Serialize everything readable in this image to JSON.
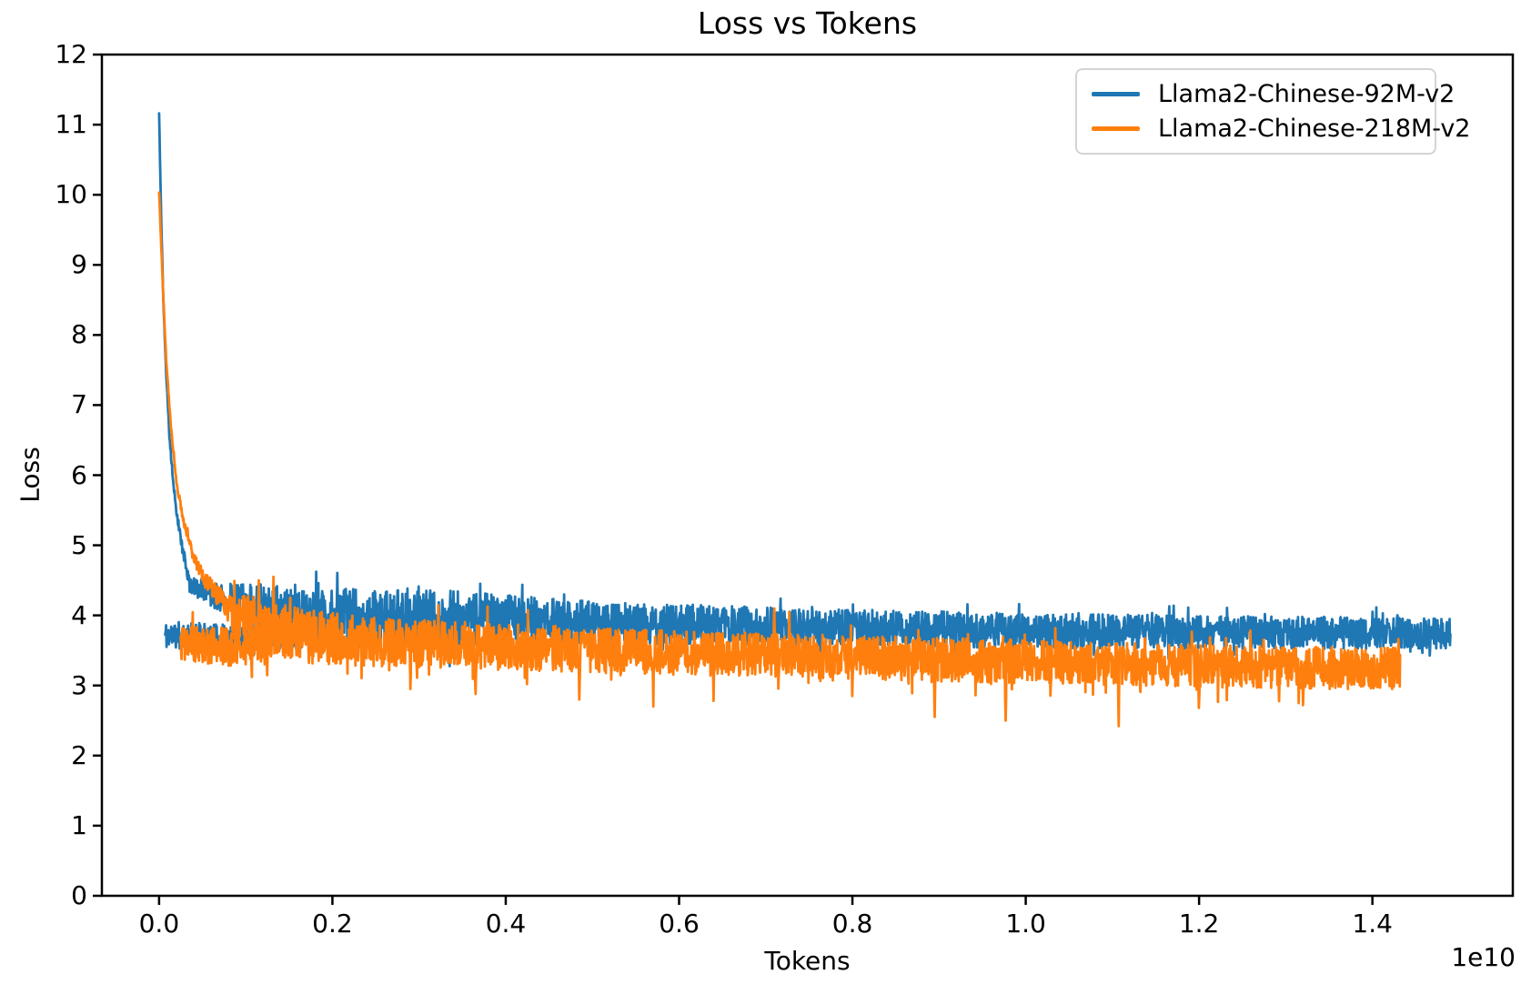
{
  "figure": {
    "background": "#ffffff",
    "spine_color": "#000000",
    "text_color": "#000000",
    "legend_border_color": "#d4d4d4"
  },
  "chart_data": {
    "type": "line",
    "title": "Loss vs Tokens",
    "xlabel": "Tokens",
    "ylabel": "Loss",
    "x_offset_label": "1e10",
    "xlim_e9": [
      -0.66,
      15.62
    ],
    "ylim": [
      0,
      12
    ],
    "x_ticks_e9": [
      0,
      2,
      4,
      6,
      8,
      10,
      12,
      14
    ],
    "x_tick_labels": [
      "0.0",
      "0.2",
      "0.4",
      "0.6",
      "0.8",
      "1.0",
      "1.2",
      "1.4"
    ],
    "y_ticks": [
      0,
      1,
      2,
      3,
      4,
      5,
      6,
      7,
      8,
      9,
      10,
      11,
      12
    ],
    "y_tick_labels": [
      "0",
      "1",
      "2",
      "3",
      "4",
      "5",
      "6",
      "7",
      "8",
      "9",
      "10",
      "11",
      "12"
    ],
    "grid": false,
    "legend_position": "upper right",
    "series": [
      {
        "name": "Llama2-Chinese-92M-v2",
        "color": "#1f77b4",
        "x_max_e9": 14.9,
        "peak_loss": 11.17,
        "final_loss_approx": 3.74,
        "n_points": 3000,
        "seed": 20240601,
        "trend_e9": [
          [
            0,
            11.17
          ],
          [
            0.02,
            9.9
          ],
          [
            0.05,
            8.45
          ],
          [
            0.08,
            7.5
          ],
          [
            0.12,
            6.55
          ],
          [
            0.16,
            5.95
          ],
          [
            0.21,
            5.4
          ],
          [
            0.27,
            4.95
          ],
          [
            0.35,
            4.45
          ],
          [
            0.6,
            4.3
          ],
          [
            0.9,
            4.2
          ],
          [
            1.4,
            4.05
          ],
          [
            2,
            3.97
          ],
          [
            3.5,
            3.93
          ],
          [
            5,
            3.9
          ],
          [
            8,
            3.82
          ],
          [
            10,
            3.78
          ],
          [
            12,
            3.76
          ],
          [
            14.9,
            3.74
          ]
        ],
        "noise_amp": [
          [
            0,
            0.02
          ],
          [
            0.2,
            0.06
          ],
          [
            0.35,
            0.12
          ],
          [
            0.8,
            0.22
          ],
          [
            1.3,
            0.36
          ],
          [
            2,
            0.42
          ],
          [
            3.5,
            0.42
          ],
          [
            5,
            0.3
          ],
          [
            7,
            0.27
          ],
          [
            10,
            0.25
          ],
          [
            14.9,
            0.22
          ]
        ],
        "dips": [],
        "spikes": [],
        "extra_band": {
          "trend_e9": [
            [
              0.07,
              3.72
            ],
            [
              0.9,
              3.66
            ],
            [
              1.8,
              3.75
            ]
          ],
          "amp": 0.2,
          "n_points": 320,
          "seed": 11
        }
      },
      {
        "name": "Llama2-Chinese-218M-v2",
        "color": "#ff7f0e",
        "x_max_e9": 14.32,
        "peak_loss": 10.05,
        "final_loss_approx": 3.24,
        "n_points": 2800,
        "seed": 987654,
        "trend_e9": [
          [
            0,
            10.05
          ],
          [
            0.04,
            8.8
          ],
          [
            0.08,
            7.7
          ],
          [
            0.13,
            6.8
          ],
          [
            0.2,
            5.9
          ],
          [
            0.28,
            5.35
          ],
          [
            0.38,
            4.9
          ],
          [
            0.5,
            4.55
          ],
          [
            0.65,
            4.3
          ],
          [
            0.8,
            4.1
          ],
          [
            1.0,
            3.95
          ],
          [
            1.3,
            3.8
          ],
          [
            1.8,
            3.68
          ],
          [
            2.5,
            3.62
          ],
          [
            3.5,
            3.57
          ],
          [
            5,
            3.5
          ],
          [
            6,
            3.46
          ],
          [
            7,
            3.43
          ],
          [
            8,
            3.4
          ],
          [
            9,
            3.37
          ],
          [
            10,
            3.34
          ],
          [
            11,
            3.31
          ],
          [
            12,
            3.28
          ],
          [
            13,
            3.26
          ],
          [
            14.32,
            3.24
          ]
        ],
        "noise_amp": [
          [
            0,
            0.02
          ],
          [
            0.4,
            0.08
          ],
          [
            0.7,
            0.18
          ],
          [
            1.0,
            0.35
          ],
          [
            1.5,
            0.4
          ],
          [
            2.5,
            0.35
          ],
          [
            5,
            0.32
          ],
          [
            14.32,
            0.3
          ]
        ],
        "dips": [
          [
            2.9,
            2.95
          ],
          [
            3.65,
            2.88
          ],
          [
            4.85,
            2.8
          ],
          [
            5.7,
            2.7
          ],
          [
            6.4,
            2.78
          ],
          [
            8.0,
            2.85
          ],
          [
            8.95,
            2.55
          ],
          [
            9.77,
            2.5
          ],
          [
            11.07,
            2.42
          ],
          [
            12.0,
            2.68
          ],
          [
            13.2,
            2.72
          ]
        ],
        "spikes": [
          [
            1.15,
            4.5
          ],
          [
            1.32,
            4.55
          ],
          [
            7.1,
            4.1
          ],
          [
            7.27,
            4.05
          ]
        ],
        "extra_band": {
          "trend_e9": [
            [
              0.25,
              3.6
            ],
            [
              0.8,
              3.55
            ],
            [
              1.3,
              3.6
            ]
          ],
          "amp": 0.27,
          "n_points": 220,
          "seed": 5
        }
      }
    ]
  }
}
